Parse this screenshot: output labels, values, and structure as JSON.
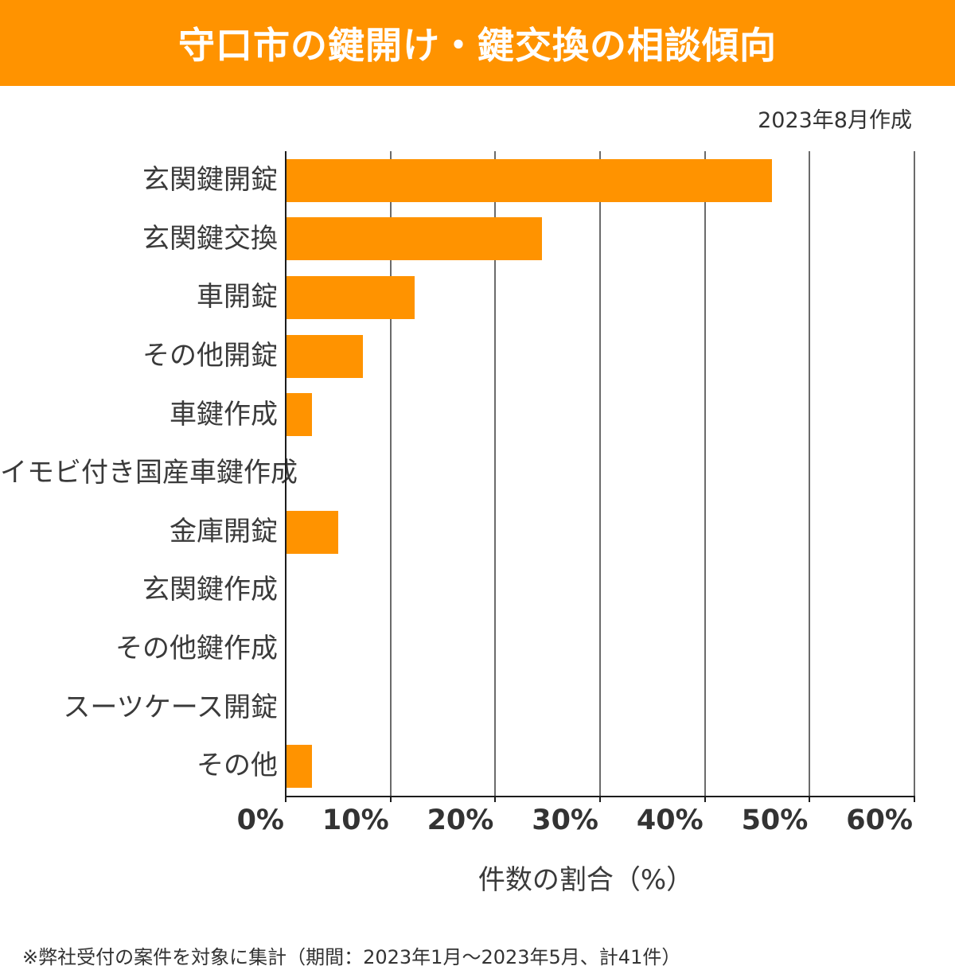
{
  "banner": {
    "title": "守口市の鍵開け・鍵交換の相談傾向",
    "bg_color": "#FF9300",
    "text_color": "#FFFFFF"
  },
  "meta": {
    "created_label": "2023年8月作成"
  },
  "chart_data": {
    "type": "bar",
    "orientation": "horizontal",
    "title": "守口市の鍵開け・鍵交換の相談傾向",
    "categories": [
      "玄関鍵開錠",
      "玄関鍵交換",
      "車開錠",
      "その他開錠",
      "車鍵作成",
      "イモビ付き国産車鍵作成",
      "金庫開錠",
      "玄関鍵作成",
      "その他鍵作成",
      "スーツケース開錠",
      "その他"
    ],
    "values": [
      46.3,
      24.4,
      12.2,
      7.3,
      2.4,
      0,
      4.9,
      0,
      0,
      0,
      2.4
    ],
    "unit": "%",
    "xlabel": "件数の割合（%）",
    "xlim": [
      0,
      60
    ],
    "x_ticks": [
      "0%",
      "10%",
      "20%",
      "30%",
      "40%",
      "50%",
      "60%"
    ],
    "grid": true,
    "bar_color": "#FF9300",
    "grid_color": "#6b6b6b",
    "axis_color": "#1c1c1c"
  },
  "footer": {
    "note": "※弊社受付の案件を対象に集計（期間：2023年1月～2023年5月、計41件）"
  }
}
